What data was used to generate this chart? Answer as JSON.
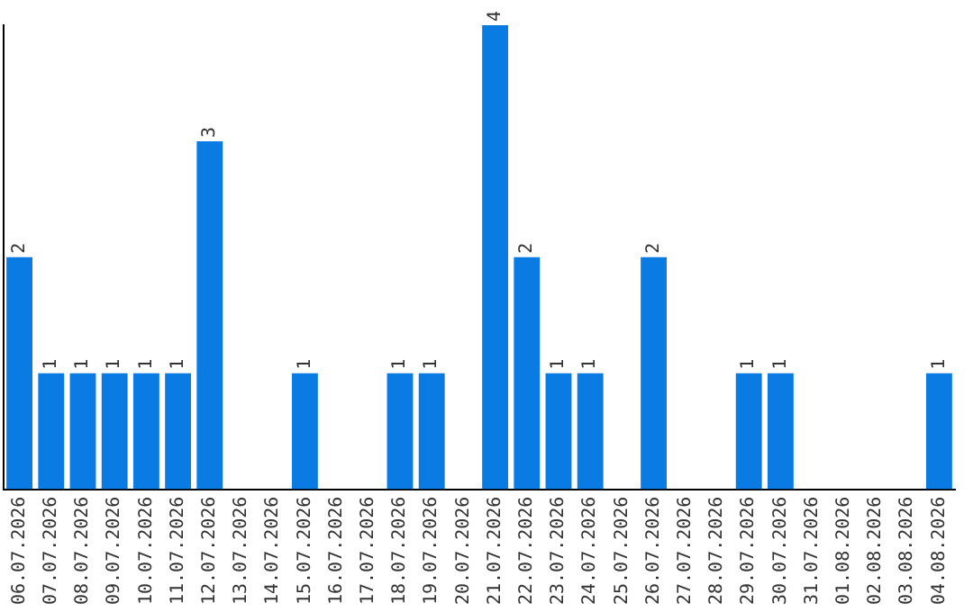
{
  "chart_data": {
    "type": "bar",
    "categories": [
      "06.07.2026",
      "07.07.2026",
      "08.07.2026",
      "09.07.2026",
      "10.07.2026",
      "11.07.2026",
      "12.07.2026",
      "13.07.2026",
      "14.07.2026",
      "15.07.2026",
      "16.07.2026",
      "17.07.2026",
      "18.07.2026",
      "19.07.2026",
      "20.07.2026",
      "21.07.2026",
      "22.07.2026",
      "23.07.2026",
      "24.07.2026",
      "25.07.2026",
      "26.07.2026",
      "27.07.2026",
      "28.07.2026",
      "29.07.2026",
      "30.07.2026",
      "31.07.2026",
      "01.08.2026",
      "02.08.2026",
      "03.08.2026",
      "04.08.2026"
    ],
    "values": [
      2,
      1,
      1,
      1,
      1,
      1,
      3,
      0,
      0,
      1,
      0,
      0,
      1,
      1,
      0,
      4,
      2,
      1,
      1,
      0,
      2,
      0,
      0,
      1,
      1,
      0,
      0,
      0,
      0,
      1
    ],
    "value_labels": [
      "2",
      "1",
      "1",
      "1",
      "1",
      "1",
      "3",
      null,
      null,
      "1",
      null,
      null,
      "1",
      "1",
      null,
      "4",
      "2",
      "1",
      "1",
      null,
      "2",
      null,
      null,
      "1",
      "1",
      null,
      null,
      null,
      null,
      "1"
    ],
    "color": "#0a7be3",
    "grid": false,
    "legend": false,
    "tick_labels": "x"
  }
}
